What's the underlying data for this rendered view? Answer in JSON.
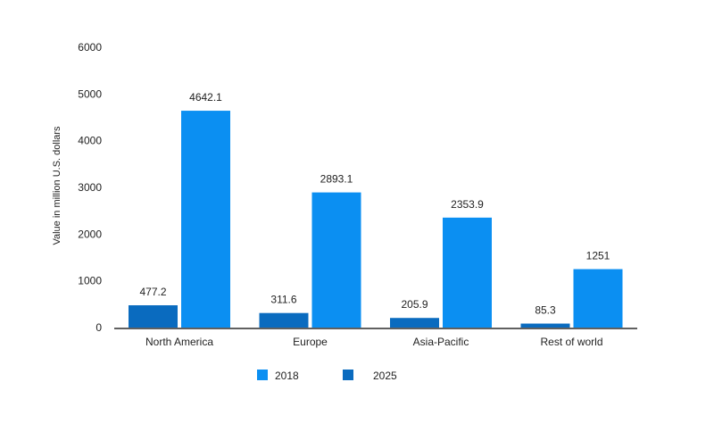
{
  "chart_data": {
    "type": "bar",
    "categories": [
      "North America",
      "Europe",
      "Asia-Pacific",
      "Rest of world"
    ],
    "series": [
      {
        "name": "2025",
        "color": "#0a6bbf",
        "values": [
          477.2,
          311.6,
          205.9,
          85.3
        ],
        "labels": [
          "477.2",
          "311.6",
          "205.9",
          "85.3"
        ]
      },
      {
        "name": "2018",
        "color": "#0b8ff2",
        "values": [
          4642.1,
          2893.1,
          2353.9,
          1251
        ],
        "labels": [
          "4642.1",
          "2893.1",
          "2353.9",
          "1251"
        ]
      }
    ],
    "ylabel": "Value in million U.S. dollars",
    "ylim": [
      0,
      6000
    ],
    "yticks": [
      "0",
      "1000",
      "2000",
      "3000",
      "4000",
      "5000",
      "6000"
    ],
    "ytick_values": [
      0,
      1000,
      2000,
      3000,
      4000,
      5000,
      6000
    ],
    "grid": false,
    "legend": {
      "position": "bottom-center",
      "items": [
        {
          "label": "2018",
          "color": "#0b8ff2"
        },
        {
          "label": "2025",
          "color": "#0a6bbf"
        }
      ]
    }
  }
}
